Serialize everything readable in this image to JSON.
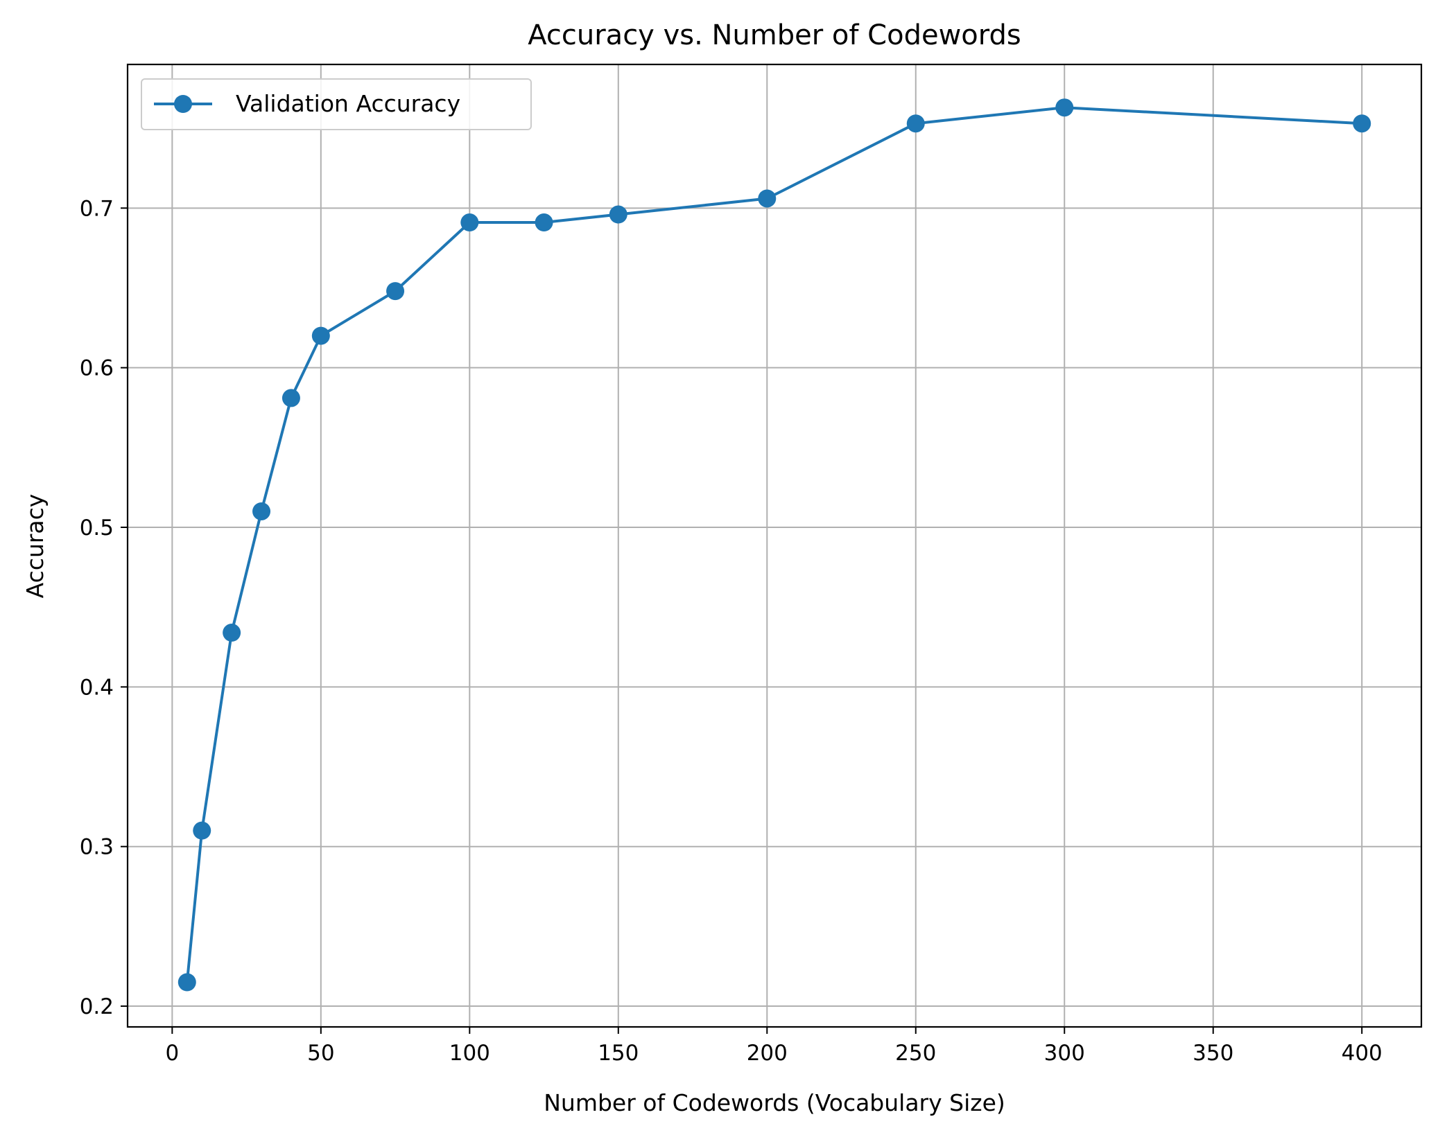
{
  "chart_data": {
    "type": "line",
    "title": "Accuracy vs. Number of Codewords",
    "xlabel": "Number of Codewords (Vocabulary Size)",
    "ylabel": "Accuracy",
    "xlim": [
      -15,
      420
    ],
    "ylim": [
      0.187,
      0.79
    ],
    "xticks": [
      0,
      50,
      100,
      150,
      200,
      250,
      300,
      350,
      400
    ],
    "yticks": [
      0.2,
      0.3,
      0.4,
      0.5,
      0.6,
      0.7
    ],
    "xtick_labels": [
      "0",
      "50",
      "100",
      "150",
      "200",
      "250",
      "300",
      "350",
      "400"
    ],
    "ytick_labels": [
      "0.2",
      "0.3",
      "0.4",
      "0.5",
      "0.6",
      "0.7"
    ],
    "grid": true,
    "legend_position": "upper-left",
    "series": [
      {
        "name": "Validation Accuracy",
        "color": "#1f77b4",
        "marker": "circle",
        "x": [
          5,
          10,
          20,
          30,
          40,
          50,
          75,
          100,
          125,
          150,
          200,
          250,
          300,
          400
        ],
        "y": [
          0.215,
          0.31,
          0.434,
          0.51,
          0.581,
          0.62,
          0.648,
          0.691,
          0.691,
          0.696,
          0.706,
          0.753,
          0.763,
          0.753
        ]
      }
    ]
  }
}
